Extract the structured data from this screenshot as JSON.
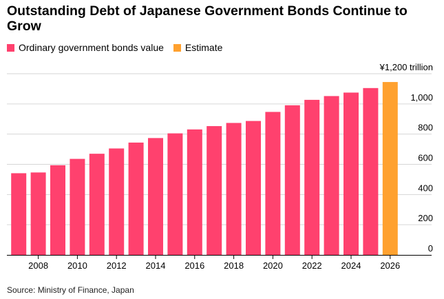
{
  "title": "Outstanding Debt of Japanese Government Bonds Continue to Grow",
  "source": "Source: Ministry of Finance, Japan",
  "colors": {
    "actual": "#ff416e",
    "estimate": "#ffa12f",
    "grid": "#d6d6d6",
    "axis": "#000000",
    "text": "#000000"
  },
  "chart_data": {
    "type": "bar",
    "x": [
      2007,
      2008,
      2009,
      2010,
      2011,
      2012,
      2013,
      2014,
      2015,
      2016,
      2017,
      2018,
      2019,
      2020,
      2021,
      2022,
      2023,
      2024,
      2025,
      2026
    ],
    "series": [
      {
        "name": "Ordinary government bonds value",
        "color": "#ff416e",
        "x": [
          2007,
          2008,
          2009,
          2010,
          2011,
          2012,
          2013,
          2014,
          2015,
          2016,
          2017,
          2018,
          2019,
          2020,
          2021,
          2022,
          2023,
          2024,
          2025
        ],
        "values": [
          541,
          546,
          594,
          636,
          670,
          705,
          744,
          774,
          805,
          831,
          853,
          874,
          887,
          947,
          991,
          1027,
          1052,
          1075,
          1105
        ]
      },
      {
        "name": "Estimate",
        "color": "#ffa12f",
        "x": [
          2026
        ],
        "values": [
          1145
        ]
      }
    ],
    "xticks": [
      "2008",
      "2010",
      "2012",
      "2014",
      "2016",
      "2018",
      "2020",
      "2022",
      "2024",
      "2026"
    ],
    "yticks": [
      "0",
      "200",
      "400",
      "600",
      "800",
      "1,000",
      "¥1,200 trillion"
    ],
    "ylim": [
      0,
      1200
    ],
    "xlabel": "",
    "ylabel": "",
    "grid": true,
    "y_axis_side": "right",
    "legend_position": "top-left"
  }
}
